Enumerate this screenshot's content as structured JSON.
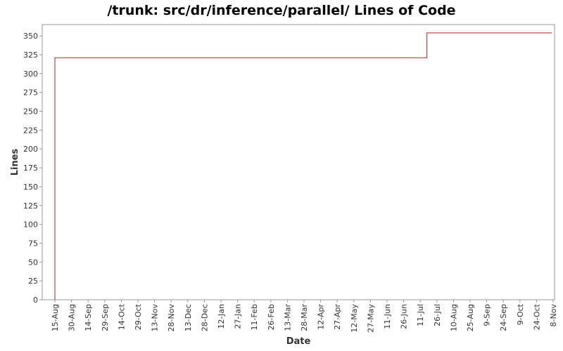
{
  "chart_data": {
    "type": "line",
    "title": "/trunk: src/dr/inference/parallel/ Lines of Code",
    "xlabel": "Date",
    "ylabel": "Lines",
    "ylim": [
      0,
      365
    ],
    "yticks": [
      0,
      25,
      50,
      75,
      100,
      125,
      150,
      175,
      200,
      225,
      250,
      275,
      300,
      325,
      350
    ],
    "xticks": [
      "15-Aug",
      "30-Aug",
      "14-Sep",
      "29-Sep",
      "14-Oct",
      "29-Oct",
      "13-Nov",
      "28-Nov",
      "13-Dec",
      "28-Dec",
      "12-Jan",
      "27-Jan",
      "11-Feb",
      "26-Feb",
      "13-Mar",
      "28-Mar",
      "12-Apr",
      "27-Apr",
      "12-May",
      "27-May",
      "11-Jun",
      "26-Jun",
      "11-Jul",
      "26-Jul",
      "10-Aug",
      "25-Aug",
      "9-Sep",
      "24-Sep",
      "9-Oct",
      "24-Oct",
      "8-Nov"
    ],
    "grid": false,
    "line_color": "#b22222",
    "series": [
      {
        "step": true,
        "x": [
          "15-Aug",
          "15-Aug",
          "17-Jul",
          "7-Nov"
        ],
        "y": [
          0,
          321,
          354,
          354
        ]
      }
    ]
  }
}
